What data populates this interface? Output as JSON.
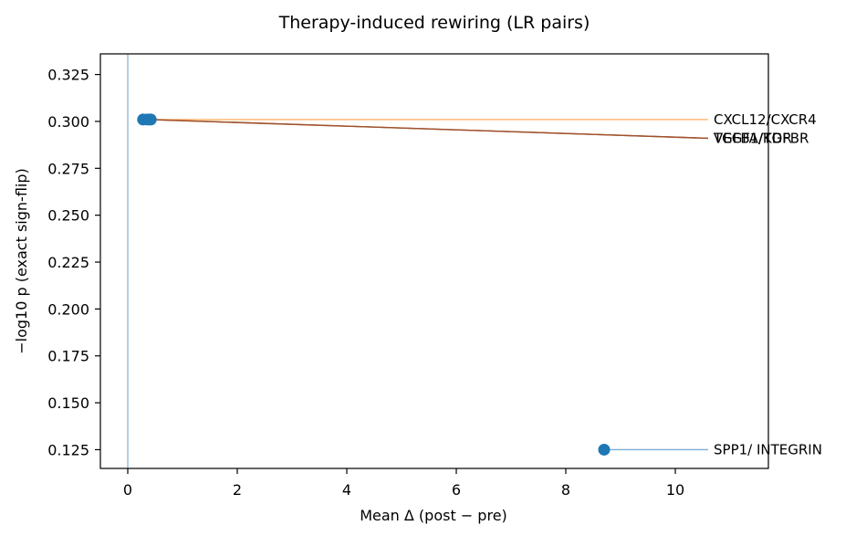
{
  "chart_data": {
    "type": "scatter",
    "title": "Therapy-induced rewiring (LR pairs)",
    "xlabel": "Mean Δ (post − pre)",
    "ylabel": "−log10 p (exact sign-flip)",
    "xlim": [
      -0.5,
      11.7
    ],
    "ylim": [
      0.115,
      0.336
    ],
    "xticks": [
      0,
      2,
      4,
      6,
      8,
      10
    ],
    "yticks": [
      0.125,
      0.15,
      0.175,
      0.2,
      0.225,
      0.25,
      0.275,
      0.3,
      0.325
    ],
    "ytick_labels": [
      "0.125",
      "0.150",
      "0.175",
      "0.200",
      "0.225",
      "0.250",
      "0.275",
      "0.300",
      "0.325"
    ],
    "reference_line_x": 0,
    "grid": false,
    "marker_color": "#1f77b4",
    "points": [
      {
        "label": "CXCL12/CXCR4",
        "x": 0.28,
        "y": 0.301,
        "label_x": 10.7,
        "label_y": 0.301,
        "leader_color": "#ffb46a"
      },
      {
        "label": "VEGFA/KDR",
        "x": 0.36,
        "y": 0.301,
        "label_x": 10.7,
        "label_y": 0.291,
        "leader_color": "#a0522d"
      },
      {
        "label": "TGFB1/TGFBR",
        "x": 0.42,
        "y": 0.301,
        "label_x": 10.7,
        "label_y": 0.291,
        "leader_color": "#a0522d"
      },
      {
        "label": "SPP1/ INTEGRIN",
        "x": 8.7,
        "y": 0.125,
        "label_x": 10.7,
        "label_y": 0.125,
        "leader_color": "#7aaed6"
      }
    ]
  }
}
